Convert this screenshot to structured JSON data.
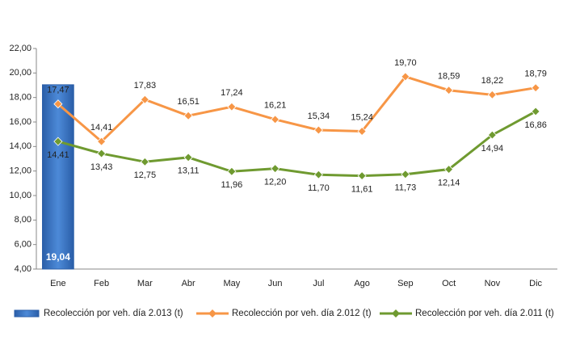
{
  "chart_data": {
    "type": "combo",
    "categories": [
      "Ene",
      "Feb",
      "Mar",
      "Abr",
      "May",
      "Jun",
      "Jul",
      "Ago",
      "Sep",
      "Oct",
      "Nov",
      "Dic"
    ],
    "ylim": [
      4,
      22
    ],
    "yticks": [
      {
        "value": 4,
        "label": "4,00"
      },
      {
        "value": 6,
        "label": "6,00"
      },
      {
        "value": 8,
        "label": "8,00"
      },
      {
        "value": 10,
        "label": "10,00"
      },
      {
        "value": 12,
        "label": "12,00"
      },
      {
        "value": 14,
        "label": "14,00"
      },
      {
        "value": 16,
        "label": "16,00"
      },
      {
        "value": 18,
        "label": "18,00"
      },
      {
        "value": 20,
        "label": "20,00"
      },
      {
        "value": 22,
        "label": "22,00"
      }
    ],
    "grid": false,
    "legend": "bottom",
    "series": [
      {
        "name": "Recolección por veh. día 2.013 (t)",
        "type": "bar",
        "color": "#3a74c4",
        "values": [
          19.04,
          null,
          null,
          null,
          null,
          null,
          null,
          null,
          null,
          null,
          null,
          null
        ],
        "value_labels": [
          "19,04",
          null,
          null,
          null,
          null,
          null,
          null,
          null,
          null,
          null,
          null,
          null
        ]
      },
      {
        "name": "Recolección por veh. día 2.012 (t)",
        "type": "line",
        "color": "#f79646",
        "values": [
          17.47,
          14.41,
          17.83,
          16.51,
          17.24,
          16.21,
          15.34,
          15.24,
          19.7,
          18.59,
          18.22,
          18.79
        ],
        "value_labels": [
          "17,47",
          "14,41",
          "17,83",
          "16,51",
          "17,24",
          "16,21",
          "15,34",
          "15,24",
          "19,70",
          "18,59",
          "18,22",
          "18,79"
        ]
      },
      {
        "name": "Recolección por veh. día 2.011 (t)",
        "type": "line",
        "color": "#6f9a30",
        "values": [
          14.41,
          13.43,
          12.75,
          13.11,
          11.96,
          12.2,
          11.7,
          11.61,
          11.73,
          12.14,
          14.94,
          16.86
        ],
        "value_labels": [
          "14,41",
          "13,43",
          "12,75",
          "13,11",
          "11,96",
          "12,20",
          "11,70",
          "11,61",
          "11,73",
          "12,14",
          "14,94",
          "16,86"
        ]
      }
    ]
  }
}
